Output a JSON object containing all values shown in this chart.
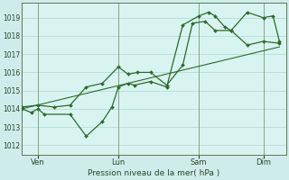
{
  "title": "Pression niveau de la mer( hPa )",
  "bg_color": "#ceecea",
  "plot_bg_color": "#d8f4f0",
  "grid_color": "#b0d8d0",
  "line_color": "#2d6a2d",
  "ylim": [
    1011.5,
    1019.8
  ],
  "yticks": [
    1012,
    1013,
    1014,
    1015,
    1016,
    1017,
    1018,
    1019
  ],
  "xtick_labels": [
    "Ven",
    "Lun",
    "Sam",
    "Dim"
  ],
  "xtick_positions": [
    0.5,
    3.0,
    5.5,
    7.5
  ],
  "vline_positions": [
    0.5,
    3.0,
    5.5,
    7.5
  ],
  "series1_x": [
    0.0,
    0.3,
    0.5,
    0.7,
    1.5,
    2.0,
    2.5,
    2.8,
    3.0,
    3.3,
    3.5,
    4.0,
    4.5,
    5.0,
    5.5,
    5.8,
    6.0,
    6.3,
    6.5,
    7.0,
    7.5,
    7.8,
    8.0
  ],
  "series1_y": [
    1014.0,
    1013.8,
    1014.0,
    1013.7,
    1013.7,
    1012.5,
    1013.3,
    1014.1,
    1015.2,
    1015.4,
    1015.3,
    1015.5,
    1015.2,
    1018.6,
    1019.1,
    1019.3,
    1019.1,
    1018.5,
    1018.3,
    1019.3,
    1019.0,
    1019.1,
    1017.7
  ],
  "series2_x": [
    0.0,
    0.5,
    1.0,
    1.5,
    2.0,
    2.5,
    3.0,
    3.3,
    3.6,
    4.0,
    4.5,
    5.0,
    5.3,
    5.7,
    6.0,
    6.5,
    7.0,
    7.5,
    8.0
  ],
  "series2_y": [
    1014.1,
    1014.2,
    1014.1,
    1014.2,
    1015.2,
    1015.4,
    1016.3,
    1015.9,
    1016.0,
    1016.0,
    1015.3,
    1016.4,
    1018.7,
    1018.8,
    1018.3,
    1018.3,
    1017.5,
    1017.7,
    1017.6
  ],
  "trend_x": [
    0.0,
    8.0
  ],
  "trend_y": [
    1014.0,
    1017.4
  ],
  "xlim": [
    0.0,
    8.2
  ]
}
